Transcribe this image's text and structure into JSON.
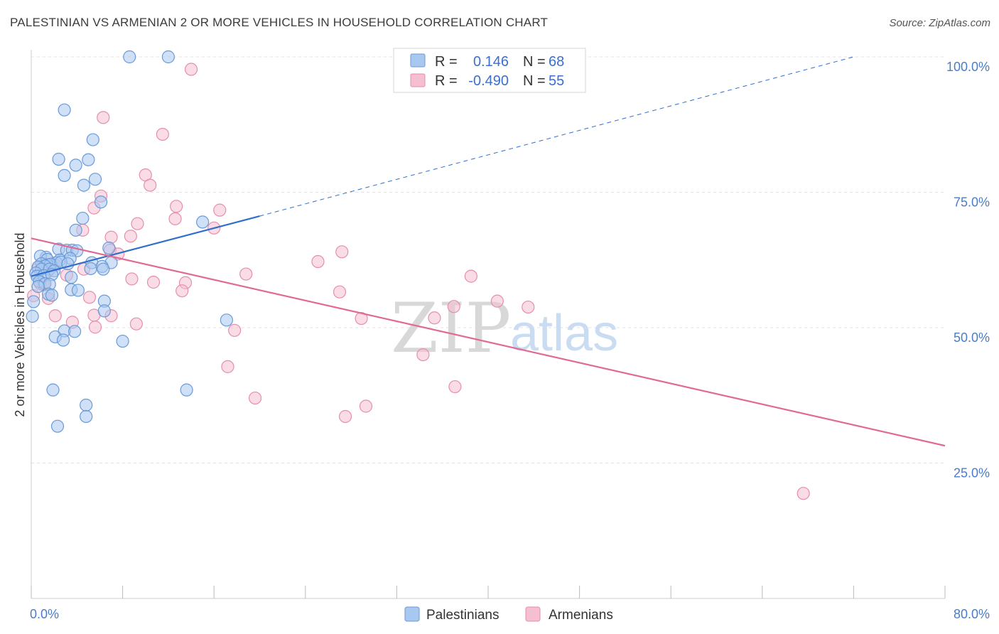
{
  "title": "PALESTINIAN VS ARMENIAN 2 OR MORE VEHICLES IN HOUSEHOLD CORRELATION CHART",
  "source": "Source: ZipAtlas.com",
  "watermark": {
    "zip": "ZIP",
    "atlas": "atlas"
  },
  "colors": {
    "palestinian_fill": "#a9c8f0",
    "palestinian_stroke": "#6a9ad8",
    "palestinian_line": "#2f6fcb",
    "armenian_fill": "#f6bfd1",
    "armenian_stroke": "#e68eae",
    "armenian_line": "#e06a93",
    "tick_text": "#4a7cc9",
    "grid": "#e3e3e3"
  },
  "legend": {
    "rows": [
      {
        "r_label": "R =",
        "r_value": "0.146",
        "n_label": "N =",
        "n_value": "68"
      },
      {
        "r_label": "R =",
        "r_value": "-0.490",
        "n_label": "N =",
        "n_value": "55"
      }
    ]
  },
  "chart_data": {
    "type": "scatter",
    "ylabel": "2 or more Vehicles in Household",
    "xlabel": "",
    "xlim": [
      0,
      80
    ],
    "ylim": [
      0,
      103
    ],
    "x_tick_labels": [
      {
        "value": 0,
        "label": "0.0%"
      },
      {
        "value": 80,
        "label": "80.0%"
      }
    ],
    "x_minor_ticks": [
      0,
      8,
      16,
      24,
      32,
      40,
      48,
      56,
      64,
      72,
      80
    ],
    "y_ticks": [
      {
        "value": 25,
        "label": "25.0%"
      },
      {
        "value": 50,
        "label": "50.0%"
      },
      {
        "value": 75,
        "label": "75.0%"
      },
      {
        "value": 100,
        "label": "100.0%"
      }
    ],
    "grid": true,
    "legend_position": "top-center",
    "series": [
      {
        "name": "Palestinians",
        "points": [
          [
            8.6,
            100
          ],
          [
            12,
            100
          ],
          [
            2.9,
            90.2
          ],
          [
            5.4,
            84.7
          ],
          [
            2.4,
            81.1
          ],
          [
            5,
            81
          ],
          [
            3.9,
            80
          ],
          [
            2.9,
            78.1
          ],
          [
            5.6,
            77.4
          ],
          [
            4.6,
            76.3
          ],
          [
            6.1,
            73.2
          ],
          [
            4.5,
            70.2
          ],
          [
            15,
            69.5
          ],
          [
            3.9,
            68
          ],
          [
            6.8,
            64.7
          ],
          [
            2.4,
            64.5
          ],
          [
            3.1,
            64.3
          ],
          [
            3.6,
            64.3
          ],
          [
            4,
            64.2
          ],
          [
            1.3,
            63
          ],
          [
            0.8,
            63.2
          ],
          [
            1.4,
            62.6
          ],
          [
            2.5,
            62.5
          ],
          [
            3.4,
            62.8
          ],
          [
            2.2,
            62
          ],
          [
            0.9,
            61.8
          ],
          [
            1.4,
            61.6
          ],
          [
            1.7,
            61.7
          ],
          [
            1.2,
            61.4
          ],
          [
            2.6,
            62.1
          ],
          [
            3.2,
            61.8
          ],
          [
            5.3,
            62
          ],
          [
            7,
            62
          ],
          [
            0.6,
            61.2
          ],
          [
            0.9,
            60.8
          ],
          [
            1.6,
            60.8
          ],
          [
            2,
            60.5
          ],
          [
            5.2,
            60.9
          ],
          [
            6.2,
            61.3
          ],
          [
            6.3,
            60.8
          ],
          [
            0.4,
            60.1
          ],
          [
            0.5,
            59.5
          ],
          [
            1.1,
            59.6
          ],
          [
            1.8,
            59.8
          ],
          [
            0.7,
            58.5
          ],
          [
            1.2,
            58.1
          ],
          [
            1.6,
            58
          ],
          [
            3.5,
            59.3
          ],
          [
            0.6,
            57.6
          ],
          [
            3.5,
            57
          ],
          [
            4.1,
            56.9
          ],
          [
            1.5,
            56.2
          ],
          [
            1.8,
            56
          ],
          [
            6.4,
            54.9
          ],
          [
            0.2,
            54.8
          ],
          [
            6.4,
            53.1
          ],
          [
            0.1,
            52.1
          ],
          [
            17.1,
            51.4
          ],
          [
            2.9,
            49.4
          ],
          [
            3.8,
            49.3
          ],
          [
            2.1,
            48.3
          ],
          [
            2.8,
            47.7
          ],
          [
            8,
            47.5
          ],
          [
            1.9,
            38.5
          ],
          [
            13.6,
            38.5
          ],
          [
            4.8,
            35.7
          ],
          [
            4.8,
            33.6
          ],
          [
            2.3,
            31.8
          ]
        ],
        "trend": {
          "x_start": 0,
          "y_start": 59.5,
          "x_end": 20,
          "y_end": 70.6,
          "dashed_to_x": 72,
          "dashed_to_y": 100
        }
      },
      {
        "name": "Armenians",
        "points": [
          [
            14,
            97.7
          ],
          [
            6.3,
            88.8
          ],
          [
            11.5,
            85.7
          ],
          [
            10,
            78.2
          ],
          [
            10.4,
            76.3
          ],
          [
            6.1,
            74.3
          ],
          [
            5.5,
            72.1
          ],
          [
            12.7,
            72.4
          ],
          [
            16.5,
            71.7
          ],
          [
            12.6,
            70.1
          ],
          [
            9.3,
            69.2
          ],
          [
            4.5,
            68
          ],
          [
            16,
            68.4
          ],
          [
            7,
            66.7
          ],
          [
            8.7,
            66.9
          ],
          [
            6.9,
            64.3
          ],
          [
            7.6,
            63.6
          ],
          [
            27.2,
            64
          ],
          [
            25.1,
            62.2
          ],
          [
            2.1,
            61.5
          ],
          [
            4.6,
            60.8
          ],
          [
            1.4,
            60.3
          ],
          [
            18.8,
            59.9
          ],
          [
            38.5,
            59.5
          ],
          [
            3.1,
            59.7
          ],
          [
            8.8,
            59
          ],
          [
            10.7,
            58.4
          ],
          [
            13.5,
            58.3
          ],
          [
            13.2,
            56.8
          ],
          [
            27,
            56.6
          ],
          [
            0.8,
            58.1
          ],
          [
            5.1,
            55.6
          ],
          [
            40.8,
            54.9
          ],
          [
            37,
            53.9
          ],
          [
            43.5,
            53.8
          ],
          [
            9.2,
            50.7
          ],
          [
            35.3,
            51.8
          ],
          [
            28.9,
            51.7
          ],
          [
            5.5,
            52.3
          ],
          [
            7,
            52.2
          ],
          [
            2.1,
            52.2
          ],
          [
            1.5,
            55.4
          ],
          [
            0.2,
            55.9
          ],
          [
            3.6,
            51
          ],
          [
            5.6,
            50.1
          ],
          [
            17.8,
            49.5
          ],
          [
            34.3,
            45
          ],
          [
            17.2,
            42.8
          ],
          [
            37.1,
            39.1
          ],
          [
            19.6,
            37
          ],
          [
            29.3,
            35.5
          ],
          [
            27.5,
            33.6
          ],
          [
            67.6,
            19.4
          ],
          [
            0.6,
            60.9
          ],
          [
            1.1,
            57.9
          ]
        ],
        "trend": {
          "x_start": 0,
          "y_start": 66.5,
          "x_end": 80,
          "y_end": 28.2
        }
      }
    ]
  }
}
